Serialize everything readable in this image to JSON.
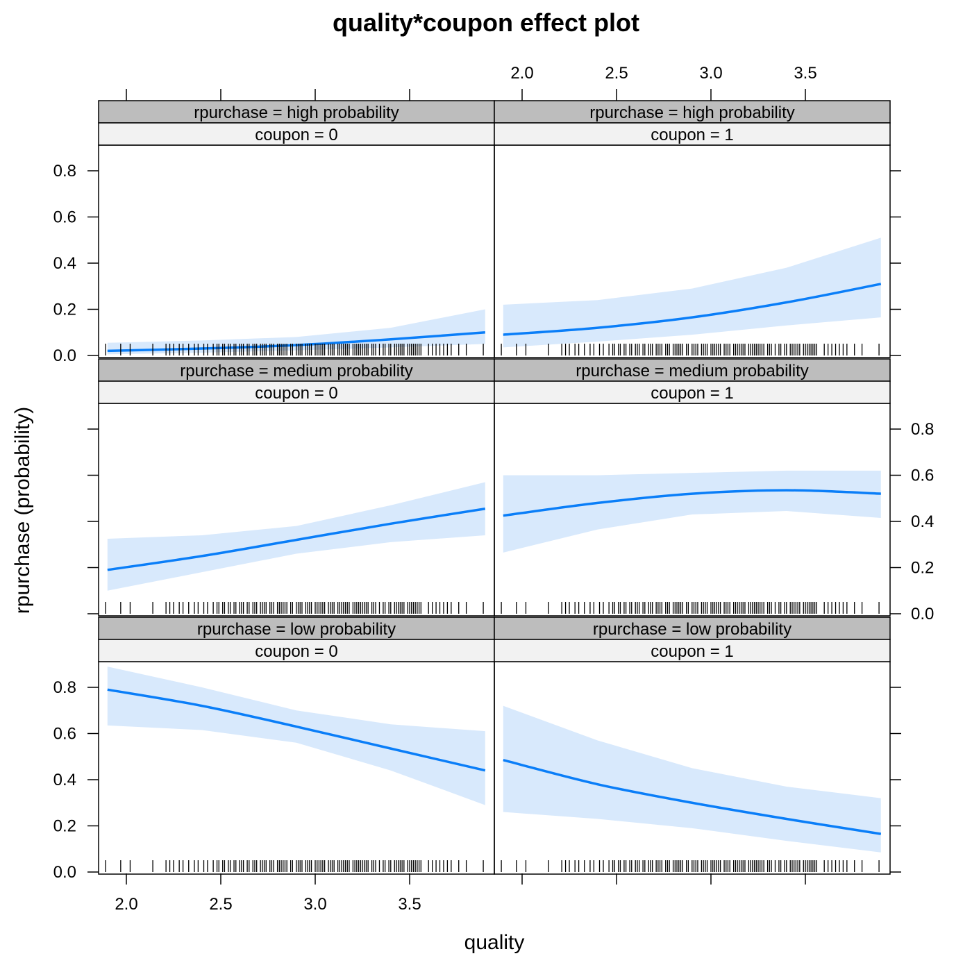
{
  "chart_data": {
    "type": "line",
    "title": "quality*coupon effect plot",
    "xlabel": "quality",
    "ylabel": "rpurchase (probability)",
    "xlim": [
      1.85,
      3.95
    ],
    "ylim": [
      0,
      0.9
    ],
    "x_ticks": [
      "2.0",
      "2.5",
      "3.0",
      "3.5"
    ],
    "x_tick_values": [
      2.0,
      2.5,
      3.0,
      3.5
    ],
    "y_ticks": [
      "0.0",
      "0.2",
      "0.4",
      "0.6",
      "0.8"
    ],
    "y_tick_values": [
      0,
      0.2,
      0.4,
      0.6,
      0.8
    ],
    "x": [
      1.9,
      2.4,
      2.9,
      3.4,
      3.9
    ],
    "panels": [
      {
        "strip1": "rpurchase = high probability",
        "strip2": "coupon = 0",
        "row": 0,
        "col": 0,
        "fit": [
          0.02,
          0.03,
          0.045,
          0.07,
          0.1
        ],
        "upper": [
          0.055,
          0.065,
          0.08,
          0.12,
          0.2
        ],
        "lower": [
          0.005,
          0.012,
          0.022,
          0.035,
          0.05
        ]
      },
      {
        "strip1": "rpurchase = high probability",
        "strip2": "coupon = 1",
        "row": 0,
        "col": 1,
        "fit": [
          0.09,
          0.12,
          0.165,
          0.23,
          0.31
        ],
        "upper": [
          0.22,
          0.24,
          0.29,
          0.38,
          0.51
        ],
        "lower": [
          0.035,
          0.06,
          0.09,
          0.13,
          0.165
        ]
      },
      {
        "strip1": "rpurchase = medium probability",
        "strip2": "coupon = 0",
        "row": 1,
        "col": 0,
        "fit": [
          0.19,
          0.25,
          0.32,
          0.39,
          0.455
        ],
        "upper": [
          0.325,
          0.34,
          0.38,
          0.47,
          0.57
        ],
        "lower": [
          0.1,
          0.18,
          0.26,
          0.31,
          0.34
        ]
      },
      {
        "strip1": "rpurchase = medium probability",
        "strip2": "coupon = 1",
        "row": 1,
        "col": 1,
        "fit": [
          0.425,
          0.48,
          0.52,
          0.535,
          0.52
        ],
        "upper": [
          0.6,
          0.6,
          0.61,
          0.62,
          0.62
        ],
        "lower": [
          0.265,
          0.365,
          0.43,
          0.445,
          0.415
        ]
      },
      {
        "strip1": "rpurchase = low probability",
        "strip2": "coupon = 0",
        "row": 2,
        "col": 0,
        "fit": [
          0.79,
          0.72,
          0.63,
          0.535,
          0.44
        ],
        "upper": [
          0.89,
          0.8,
          0.7,
          0.64,
          0.61
        ],
        "lower": [
          0.635,
          0.615,
          0.56,
          0.44,
          0.29
        ]
      },
      {
        "strip1": "rpurchase = low probability",
        "strip2": "coupon = 1",
        "row": 2,
        "col": 1,
        "fit": [
          0.485,
          0.38,
          0.3,
          0.23,
          0.165
        ],
        "upper": [
          0.72,
          0.57,
          0.45,
          0.37,
          0.32
        ],
        "lower": [
          0.26,
          0.23,
          0.19,
          0.135,
          0.085
        ]
      }
    ],
    "rug": [
      1.89,
      1.97,
      2.02,
      2.14,
      2.21,
      2.23,
      2.25,
      2.28,
      2.3,
      2.33,
      2.36,
      2.38,
      2.41,
      2.43,
      2.46,
      2.48,
      2.49,
      2.51,
      2.52,
      2.54,
      2.55,
      2.57,
      2.58,
      2.6,
      2.61,
      2.62,
      2.64,
      2.65,
      2.67,
      2.68,
      2.69,
      2.71,
      2.72,
      2.73,
      2.74,
      2.76,
      2.77,
      2.78,
      2.8,
      2.81,
      2.82,
      2.83,
      2.84,
      2.85,
      2.87,
      2.88,
      2.9,
      2.91,
      2.92,
      2.93,
      2.95,
      2.96,
      2.97,
      2.98,
      3.0,
      3.01,
      3.02,
      3.03,
      3.04,
      3.05,
      3.07,
      3.08,
      3.09,
      3.1,
      3.12,
      3.13,
      3.14,
      3.15,
      3.16,
      3.17,
      3.18,
      3.2,
      3.21,
      3.22,
      3.23,
      3.24,
      3.25,
      3.26,
      3.27,
      3.28,
      3.3,
      3.31,
      3.32,
      3.34,
      3.36,
      3.37,
      3.39,
      3.4,
      3.42,
      3.43,
      3.44,
      3.45,
      3.46,
      3.47,
      3.49,
      3.5,
      3.51,
      3.52,
      3.53,
      3.54,
      3.55,
      3.56,
      3.6,
      3.62,
      3.64,
      3.66,
      3.68,
      3.7,
      3.72,
      3.76,
      3.8,
      3.89
    ],
    "colors": {
      "fit": "#0a7ef8",
      "band": "#d8e9fc",
      "strip_dark": "#bdbdbd",
      "strip_light": "#f2f2f2"
    }
  }
}
